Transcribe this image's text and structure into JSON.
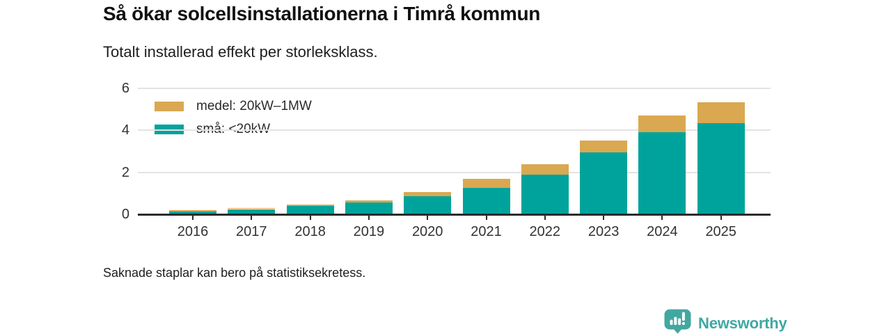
{
  "title": "Så ökar solcellsinstallationerna i Timrå kommun",
  "subtitle": "Totalt installerad effekt per storleksklass.",
  "footnote": "Saknade staplar kan bero på statistiksekretess.",
  "branding": {
    "name": "Newsworthy",
    "icon": "newsworthy-speech-bubble-chart-icon",
    "color": "#3FA8A1"
  },
  "colors": {
    "medel": "#D9A851",
    "sma": "#00A39B",
    "axis": "#2B2B2B",
    "gridline": "#E3E3E3",
    "tick_text": "#333333"
  },
  "chart_data": {
    "type": "bar",
    "stacked": true,
    "title": "Så ökar solcellsinstallationerna i Timrå kommun",
    "subtitle": "Totalt installerad effekt per storleksklass.",
    "xlabel": "",
    "ylabel": "",
    "ylim": [
      0,
      6
    ],
    "yticks": [
      0,
      2,
      4,
      6
    ],
    "grid": true,
    "legend_position": "top-left",
    "categories": [
      "2016",
      "2017",
      "2018",
      "2019",
      "2020",
      "2021",
      "2022",
      "2023",
      "2024",
      "2025"
    ],
    "series": [
      {
        "name": "medel: 20kW–1MW",
        "color_key": "medel",
        "values": [
          0.05,
          0.06,
          0.08,
          0.1,
          0.2,
          0.45,
          0.5,
          0.55,
          0.8,
          1.0
        ]
      },
      {
        "name": "små: <20kW",
        "color_key": "sma",
        "values": [
          0.15,
          0.25,
          0.4,
          0.55,
          0.85,
          1.25,
          1.9,
          2.95,
          3.9,
          4.35
        ]
      }
    ]
  }
}
